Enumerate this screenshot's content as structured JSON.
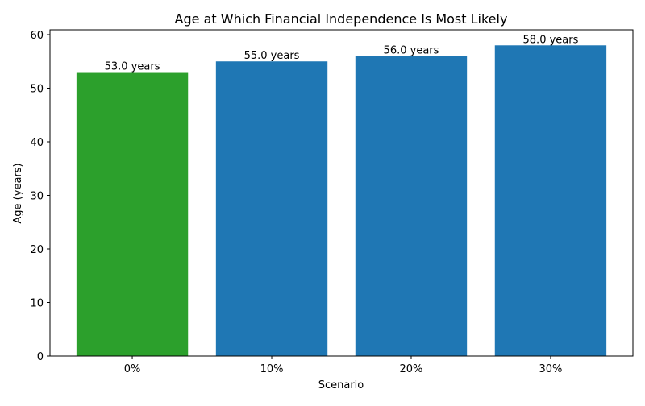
{
  "chart_data": {
    "type": "bar",
    "title": "Age at Which Financial Independence Is Most Likely",
    "xlabel": "Scenario",
    "ylabel": "Age (years)",
    "categories": [
      "0%",
      "10%",
      "20%",
      "30%"
    ],
    "values": [
      53.0,
      55.0,
      56.0,
      58.0
    ],
    "data_labels": [
      "53.0 years",
      "55.0 years",
      "56.0 years",
      "58.0 years"
    ],
    "colors": [
      "#2ca02c",
      "#1f77b4",
      "#1f77b4",
      "#1f77b4"
    ],
    "ylim": [
      0,
      60.9
    ],
    "yticks": [
      0,
      10,
      20,
      30,
      40,
      50,
      60
    ],
    "grid": false,
    "legend": "none"
  }
}
